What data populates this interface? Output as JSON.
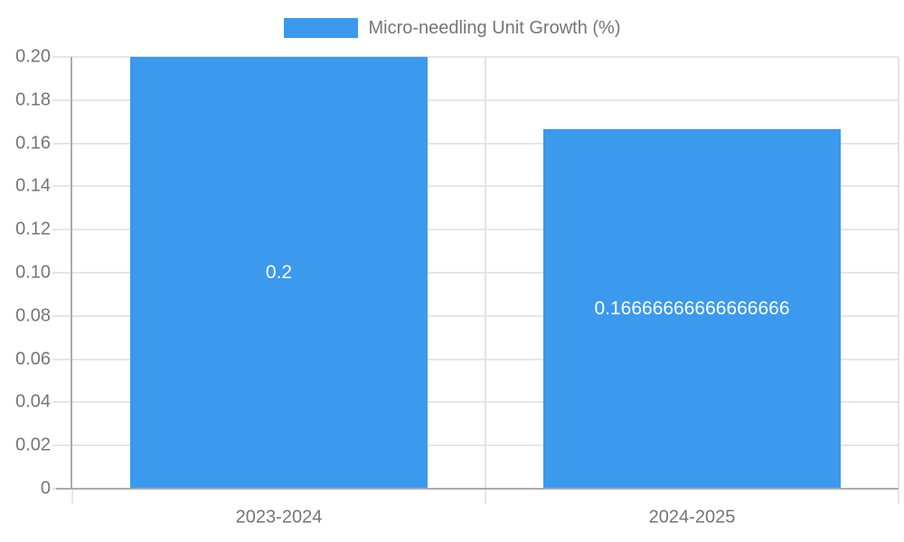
{
  "legend": {
    "label": "Micro-needling Unit Growth (%)"
  },
  "chart_data": {
    "type": "bar",
    "categories": [
      "2023-2024",
      "2024-2025"
    ],
    "values": [
      0.2,
      0.16666666666666666
    ],
    "bar_labels": [
      "0.2",
      "0.16666666666666666"
    ],
    "series_name": "Micro-needling Unit Growth (%)",
    "title": "",
    "xlabel": "",
    "ylabel": "",
    "ylim": [
      0,
      0.2
    ],
    "y_ticks": [
      "0",
      "0.02",
      "0.04",
      "0.06",
      "0.08",
      "0.10",
      "0.12",
      "0.14",
      "0.16",
      "0.18",
      "0.20"
    ],
    "grid": true,
    "legend_position": "top"
  },
  "colors": {
    "bar": "#3b99ee",
    "grid": "#e6e6e6",
    "axis": "#ababab",
    "tick_text": "#757575",
    "value_label": "#ffffff",
    "background": "#ffffff"
  }
}
